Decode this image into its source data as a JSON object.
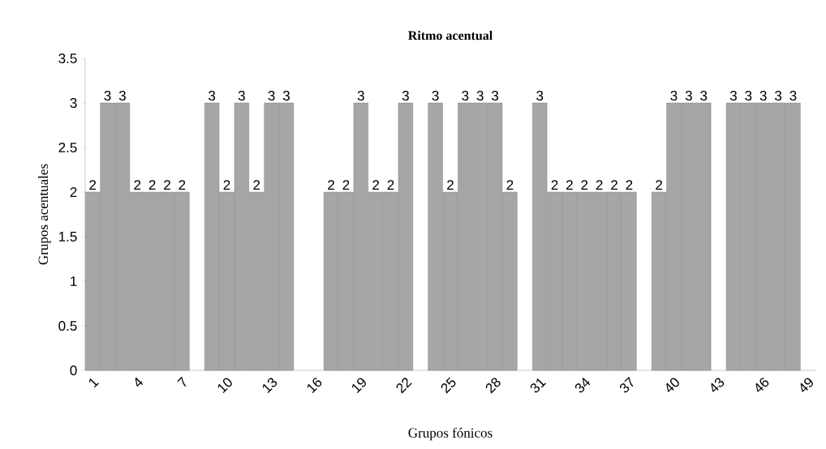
{
  "chart_data": {
    "type": "bar",
    "title": "Ritmo acentual",
    "xlabel": "Grupos fónicos",
    "ylabel": "Grupos acentuales",
    "categories": [
      "1",
      null,
      null,
      "4",
      null,
      null,
      "7",
      null,
      null,
      "10",
      null,
      null,
      "13",
      null,
      null,
      "16",
      null,
      null,
      "19",
      null,
      null,
      "22",
      null,
      null,
      "25",
      null,
      null,
      "28",
      null,
      null,
      "31",
      null,
      null,
      "34",
      null,
      null,
      "37",
      null,
      null,
      "40",
      null,
      null,
      "43",
      null,
      null,
      "46",
      null,
      null,
      "49"
    ],
    "values": [
      2,
      3,
      3,
      2,
      2,
      2,
      2,
      null,
      3,
      2,
      3,
      2,
      3,
      3,
      null,
      null,
      2,
      2,
      3,
      2,
      2,
      3,
      null,
      3,
      2,
      3,
      3,
      3,
      2,
      null,
      3,
      2,
      2,
      2,
      2,
      2,
      2,
      null,
      2,
      3,
      3,
      3,
      null,
      3,
      3,
      3,
      3,
      3,
      null
    ],
    "color": "#a6a6a6",
    "data_labels": true,
    "grid": false,
    "ylim": [
      0,
      3.5
    ],
    "yticks": [
      0,
      {
        "value": 0.5,
        "label": "0.5"
      },
      1,
      {
        "value": 1.5,
        "label": "1.5"
      },
      2,
      {
        "value": 2.5,
        "label": "2.5"
      },
      3,
      {
        "value": 3.5,
        "label": "3.5"
      }
    ]
  }
}
